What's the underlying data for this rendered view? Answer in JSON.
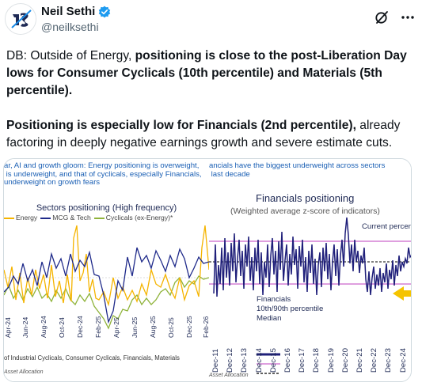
{
  "author": {
    "name": "Neil Sethi",
    "handle": "@neilksethi",
    "avatar_icon": "ns-logo-avatar-icon",
    "verified_icon": "verified-badge-icon"
  },
  "actions": {
    "grok_icon": "grok-icon",
    "more_icon": "more-options-icon"
  },
  "post": {
    "p1_plain": "DB: Outside of Energy, ",
    "p1_bold": "positioning is close to the post-Liberation Day lows for Consumer Cyclicals (10th percentile) and Materials (5th percentile).",
    "p2_bold": "Positioning is especially low for Financials (2nd percentile),",
    "p2_plain": " already factoring in deeply negative earnings growth and severe estimate cuts."
  },
  "left_chart": {
    "banner": "ar, AI and growth gloom: Energy positioning is overweight,\n is underweight, and that of cyclicals, especially Financials,\nunderweight on growth fears",
    "title": "Sectors positioning (High frequency)",
    "legend": [
      "Energy",
      "MCG & Tech",
      "Cyclicals (ex-Energy)*"
    ],
    "colors": {
      "energy": "#f5b400",
      "mcg": "#1f2a8a",
      "cyclicals": "#8fb33a"
    },
    "x_ticks": [
      "Apr-24",
      "Jun-24",
      "Aug-24",
      "Oct-24",
      "Dec-24",
      "Feb-25",
      "Apr-25",
      "Jun-25",
      "Aug-25",
      "Oct-25",
      "Dec-25",
      "Feb-26"
    ],
    "footnote": "of Industrial Cyclicals, Consumer Cyclicals, Financials, Materials",
    "source": "Asset Allocation"
  },
  "right_chart": {
    "banner": "ancials have the biggest underweight across sectors\n last decade",
    "title": "Financials positioning",
    "subtitle": "(Weighted average z-score of indicators)",
    "current_label": "Current percent",
    "legend": [
      "Financials",
      "10th/90th percentile",
      "Median"
    ],
    "colors": {
      "financials": "#1f1f7a",
      "percentile": "#cc66cc",
      "arrow": "#f5c400"
    },
    "x_ticks": [
      "Dec-11",
      "Dec-12",
      "Dec-13",
      "Dec-14",
      "Dec-15",
      "Dec-16",
      "Dec-17",
      "Dec-18",
      "Dec-19",
      "Dec-20",
      "Dec-21",
      "Dec-22",
      "Dec-23",
      "Dec-24"
    ],
    "source": "Asset Allocation"
  }
}
